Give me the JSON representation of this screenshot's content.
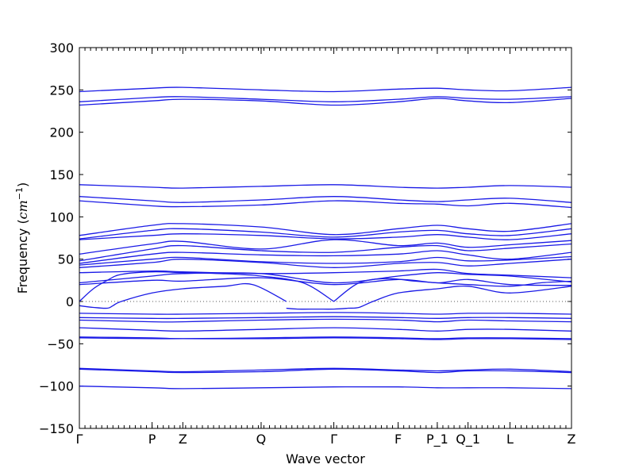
{
  "chart_data": {
    "type": "line",
    "title": "",
    "xlabel": "Wave vector",
    "ylabel": "Frequency ($cm^{-1}$)",
    "ylim": [
      -150,
      300
    ],
    "xlim": [
      0,
      17.6
    ],
    "y_ticks": [
      -150,
      -100,
      -50,
      0,
      50,
      100,
      150,
      200,
      250,
      300
    ],
    "y_tick_labels": [
      "−150",
      "−100",
      "−50",
      "0",
      "50",
      "100",
      "150",
      "200",
      "250",
      "300"
    ],
    "x_ticks": [
      0,
      2.6,
      3.7,
      6.5,
      9.1,
      11.4,
      12.8,
      13.9,
      15.4,
      17.6
    ],
    "x_tick_labels": [
      "Γ",
      "P",
      "Z",
      "Q",
      "Γ",
      "F",
      "P_1",
      "Q_1",
      "L",
      "Z"
    ],
    "grid": false,
    "legend": "none",
    "series_color": "#1a1ae6",
    "series": [
      {
        "x": [
          0,
          2.6,
          3.7,
          6.5,
          9.1,
          11.4,
          12.8,
          13.9,
          15.4,
          17.6
        ],
        "y": [
          248,
          252,
          253,
          250,
          248,
          251,
          252,
          250,
          249,
          253
        ]
      },
      {
        "x": [
          0,
          2.6,
          3.7,
          6.5,
          9.1,
          11.4,
          12.8,
          13.9,
          15.4,
          17.6
        ],
        "y": [
          236,
          241,
          242,
          239,
          236,
          239,
          242,
          240,
          239,
          242
        ]
      },
      {
        "x": [
          0,
          2.6,
          3.7,
          6.5,
          9.1,
          11.4,
          12.8,
          13.9,
          15.4,
          17.6
        ],
        "y": [
          232,
          237,
          239,
          237,
          232,
          236,
          240,
          237,
          235,
          240
        ]
      },
      {
        "x": [
          0,
          2.6,
          3.7,
          6.5,
          9.1,
          11.4,
          12.8,
          13.9,
          15.4,
          17.6
        ],
        "y": [
          138,
          135,
          134,
          136,
          138,
          135,
          134,
          135,
          137,
          135
        ]
      },
      {
        "x": [
          0,
          2.6,
          3.7,
          6.5,
          9.1,
          11.4,
          12.8,
          13.9,
          15.4,
          17.6
        ],
        "y": [
          124,
          119,
          117,
          120,
          124,
          120,
          118,
          120,
          122,
          117
        ]
      },
      {
        "x": [
          0,
          2.6,
          3.7,
          6.5,
          9.1,
          11.4,
          12.8,
          13.9,
          15.4,
          17.6
        ],
        "y": [
          119,
          113,
          112,
          114,
          119,
          116,
          115,
          113,
          116,
          111
        ]
      },
      {
        "x": [
          0,
          2.6,
          3.7,
          6.5,
          9.1,
          11.4,
          12.8,
          13.9,
          15.4,
          17.6
        ],
        "y": [
          78,
          90,
          92,
          88,
          79,
          86,
          90,
          86,
          83,
          92
        ]
      },
      {
        "x": [
          0,
          2.6,
          3.7,
          6.5,
          9.1,
          11.4,
          12.8,
          13.9,
          15.4,
          17.6
        ],
        "y": [
          74,
          84,
          86,
          82,
          76,
          82,
          84,
          80,
          78,
          86
        ]
      },
      {
        "x": [
          0,
          2.6,
          3.7,
          6.5,
          9.1,
          11.4,
          12.8,
          13.9,
          15.4,
          17.6
        ],
        "y": [
          73,
          78,
          80,
          78,
          74,
          76,
          79,
          76,
          73,
          80
        ]
      },
      {
        "x": [
          0,
          2.6,
          3.7,
          6.5,
          9.1,
          11.4,
          12.8,
          13.9,
          15.4,
          17.6
        ],
        "y": [
          56,
          68,
          71,
          62,
          73,
          66,
          69,
          64,
          67,
          72
        ]
      },
      {
        "x": [
          0,
          2.6,
          3.7,
          6.5,
          9.1,
          11.4,
          12.8,
          13.9,
          15.4,
          17.6
        ],
        "y": [
          48,
          62,
          66,
          60,
          58,
          64,
          66,
          60,
          63,
          68
        ]
      },
      {
        "x": [
          0,
          2.6,
          3.7,
          6.5,
          9.1,
          11.4,
          12.8,
          13.9,
          15.4,
          17.6
        ],
        "y": [
          45,
          56,
          58,
          55,
          54,
          56,
          60,
          55,
          50,
          58
        ]
      },
      {
        "x": [
          0,
          2.6,
          3.7,
          6.5,
          9.1,
          11.4,
          12.8,
          13.9,
          15.4,
          17.6
        ],
        "y": [
          43,
          50,
          52,
          47,
          45,
          47,
          52,
          48,
          49,
          53
        ]
      },
      {
        "x": [
          0,
          2.6,
          3.7,
          6.5,
          9.1,
          11.4,
          12.8,
          13.9,
          15.4,
          17.6
        ],
        "y": [
          40,
          46,
          50,
          46,
          40,
          45,
          46,
          42,
          45,
          50
        ]
      },
      {
        "x": [
          0,
          2.6,
          3.7,
          6.5,
          9.1,
          11.4,
          12.8,
          13.9,
          15.4,
          17.6
        ],
        "y": [
          34,
          36,
          35,
          33,
          34,
          36,
          38,
          33,
          31,
          28
        ]
      },
      {
        "x": [
          0,
          2.6,
          3.7,
          6.5,
          9.1,
          11.4,
          12.8,
          13.9,
          15.4,
          17.6
        ],
        "y": [
          22,
          30,
          33,
          33,
          22,
          30,
          34,
          32,
          30,
          23
        ]
      },
      {
        "x": [
          0,
          2.6,
          3.7,
          6.5,
          9.1,
          11.4,
          12.8,
          13.9,
          15.4,
          17.6
        ],
        "y": [
          20,
          25,
          24,
          28,
          20,
          26,
          22,
          26,
          20,
          19
        ]
      },
      {
        "x": [
          0,
          0.5,
          1.0,
          1.5,
          2.6,
          3.7,
          5.0,
          6.5,
          8.0,
          9.1
        ],
        "y": [
          0,
          15,
          25,
          32,
          35,
          34,
          33,
          30,
          22,
          0
        ]
      },
      {
        "x": [
          9.1,
          10.0,
          11.0,
          12.0,
          12.8,
          13.9,
          15.4,
          16.5,
          17.6
        ],
        "y": [
          0,
          22,
          27,
          24,
          22,
          20,
          18,
          22,
          24
        ]
      },
      {
        "x": [
          0,
          0.5,
          1.0,
          1.2,
          1.5,
          2.6,
          3.7,
          5.2,
          6.2,
          7.4
        ],
        "y": [
          -5,
          -7,
          -8,
          -5,
          0,
          10,
          15,
          18,
          20,
          0
        ]
      },
      {
        "x": [
          7.4,
          7.8,
          8.5,
          9.1,
          9.6,
          10.0,
          10.5,
          11.4,
          12.8,
          13.9,
          15.4,
          17.6
        ],
        "y": [
          -8,
          -9,
          -9,
          -9,
          -8,
          -7,
          0,
          10,
          15,
          18,
          10,
          18
        ]
      },
      {
        "x": [
          0,
          2.6,
          3.7,
          6.5,
          9.1,
          11.4,
          12.8,
          13.9,
          15.4,
          17.6
        ],
        "y": [
          -14,
          -15,
          -15,
          -14,
          -13,
          -14,
          -15,
          -14,
          -14,
          -15
        ]
      },
      {
        "x": [
          0,
          2.6,
          3.7,
          6.5,
          9.1,
          11.4,
          12.8,
          13.9,
          15.4,
          17.6
        ],
        "y": [
          -19,
          -20,
          -20,
          -19,
          -18,
          -19,
          -20,
          -19,
          -19,
          -20
        ]
      },
      {
        "x": [
          0,
          2.6,
          3.7,
          6.5,
          9.1,
          11.4,
          12.8,
          13.9,
          15.4,
          17.6
        ],
        "y": [
          -22,
          -24,
          -24,
          -22,
          -21,
          -22,
          -24,
          -22,
          -23,
          -24
        ]
      },
      {
        "x": [
          0,
          2.6,
          3.7,
          6.5,
          9.1,
          11.4,
          12.8,
          13.9,
          15.4,
          17.6
        ],
        "y": [
          -31,
          -34,
          -35,
          -33,
          -31,
          -33,
          -35,
          -33,
          -33,
          -35
        ]
      },
      {
        "x": [
          0,
          2.6,
          3.7,
          6.5,
          9.1,
          11.4,
          12.8,
          13.9,
          15.4,
          17.6
        ],
        "y": [
          -42,
          -43,
          -44,
          -43,
          -42,
          -43,
          -44,
          -43,
          -43,
          -44
        ]
      },
      {
        "x": [
          0,
          2.6,
          3.7,
          6.5,
          9.1,
          11.4,
          12.8,
          13.9,
          15.4,
          17.6
        ],
        "y": [
          -43,
          -44,
          -44,
          -44,
          -43,
          -44,
          -45,
          -44,
          -44,
          -45
        ]
      },
      {
        "x": [
          0,
          2.6,
          3.7,
          6.5,
          9.1,
          11.4,
          12.8,
          13.9,
          15.4,
          17.6
        ],
        "y": [
          -79,
          -82,
          -83,
          -81,
          -79,
          -81,
          -82,
          -81,
          -80,
          -83
        ]
      },
      {
        "x": [
          0,
          2.6,
          3.7,
          6.5,
          9.1,
          11.4,
          12.8,
          13.9,
          15.4,
          17.6
        ],
        "y": [
          -80,
          -83,
          -84,
          -83,
          -80,
          -82,
          -84,
          -82,
          -82,
          -84
        ]
      },
      {
        "x": [
          0,
          2.6,
          3.7,
          6.5,
          9.1,
          11.4,
          12.8,
          13.9,
          15.4,
          17.6
        ],
        "y": [
          -100,
          -102,
          -103,
          -102,
          -101,
          -101,
          -102,
          -102,
          -102,
          -103
        ]
      }
    ]
  }
}
